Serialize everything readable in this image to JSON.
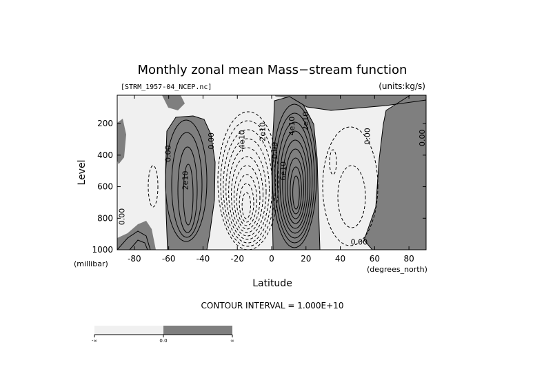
{
  "chart_data": {
    "type": "contour",
    "title": "Monthly zonal mean Mass−stream function",
    "file_label": "[STRM_1957-04_NCEP.nc]",
    "units_label": "(units:kg/s)",
    "xlabel": "Latitude",
    "x_unit_label": "(degrees_north)",
    "ylabel": "Level",
    "y_unit_label": "(millibar)",
    "xlim": [
      -90,
      90
    ],
    "ylim": [
      1000,
      20
    ],
    "x_ticks": [
      -80,
      -60,
      -40,
      -20,
      0,
      20,
      40,
      60,
      80
    ],
    "y_ticks": [
      200,
      400,
      600,
      800,
      1000
    ],
    "contour_interval_text": "CONTOUR INTERVAL = 1.000E+10",
    "contour_labels": [
      {
        "text": "2e10",
        "lat": -50,
        "lev": 560,
        "rot": -90
      },
      {
        "text": "0.00",
        "lat": -60,
        "lev": 390,
        "rot": -90
      },
      {
        "text": "0.00",
        "lat": -35,
        "lev": 310,
        "rot": -90
      },
      {
        "text": "-4e10",
        "lat": -17,
        "lev": 310,
        "rot": -90
      },
      {
        "text": "-2e10",
        "lat": -5,
        "lev": 260,
        "rot": -90
      },
      {
        "text": "0.00",
        "lat": 2,
        "lev": 370,
        "rot": -90
      },
      {
        "text": "6e10",
        "lat": 7,
        "lev": 500,
        "rot": -90
      },
      {
        "text": "4e10",
        "lat": 12,
        "lev": 215,
        "rot": -90
      },
      {
        "text": "2e10",
        "lat": 20,
        "lev": 185,
        "rot": -90
      },
      {
        "text": "0.00",
        "lat": 56,
        "lev": 280,
        "rot": -90
      },
      {
        "text": "0.00",
        "lat": 88,
        "lev": 290,
        "rot": -90
      },
      {
        "text": "0.00",
        "lat": 51,
        "lev": 955,
        "rot": 0
      },
      {
        "text": "0.00",
        "lat": -87,
        "lev": 790,
        "rot": -90
      }
    ],
    "colorbar": {
      "colors": [
        "#f0f0f0",
        "#7f7f7f"
      ],
      "ticks": [
        "-∞",
        "0.0",
        "∞"
      ]
    },
    "colors": {
      "positive_fill": "#7f7f7f",
      "negative_fill": "#f0f0f0",
      "line": "#000000"
    }
  }
}
